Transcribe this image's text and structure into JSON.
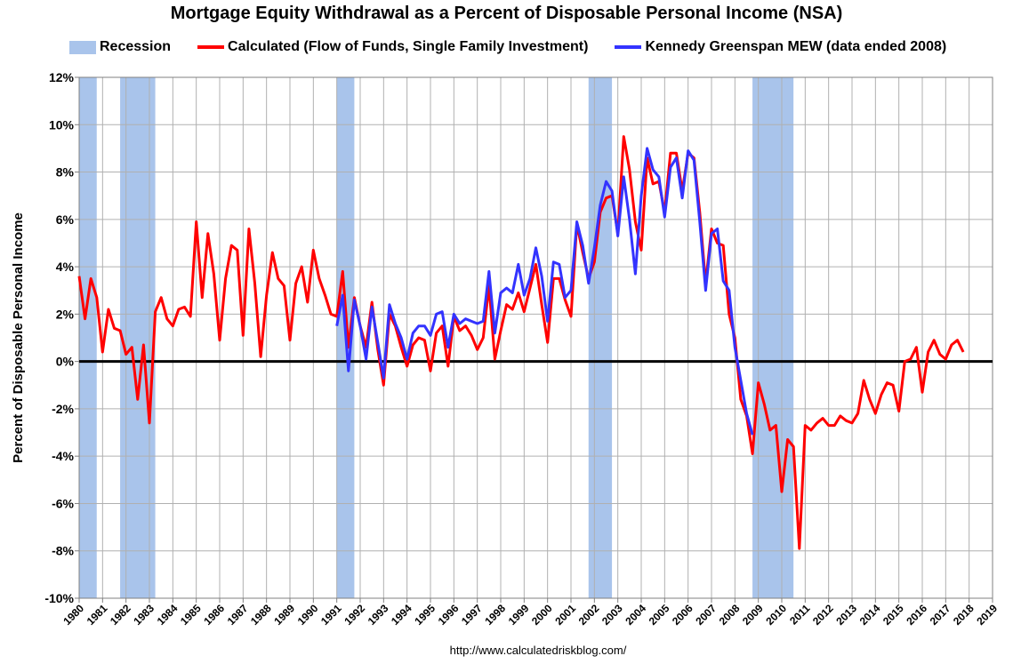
{
  "chart_data": {
    "type": "line",
    "title": "Mortgage Equity Withdrawal as a Percent of Disposable Personal Income (NSA)",
    "ylabel": "Percent of Disposable Personal Income",
    "xlabel": "",
    "ylim": [
      -10,
      12
    ],
    "xlim": [
      1980,
      2019
    ],
    "yticks": [
      -10,
      -8,
      -6,
      -4,
      -2,
      0,
      2,
      4,
      6,
      8,
      10,
      12
    ],
    "yticklabels": [
      "-10%",
      "-8%",
      "-6%",
      "-4%",
      "-2%",
      "0%",
      "2%",
      "4%",
      "6%",
      "8%",
      "10%",
      "12%"
    ],
    "xticklabels": [
      "1980",
      "1981",
      "1982",
      "1983",
      "1984",
      "1985",
      "1986",
      "1987",
      "1988",
      "1989",
      "1990",
      "1991",
      "1992",
      "1993",
      "1994",
      "1995",
      "1996",
      "1997",
      "1998",
      "1999",
      "2000",
      "2001",
      "2002",
      "2003",
      "2004",
      "2005",
      "2006",
      "2007",
      "2008",
      "2009",
      "2010",
      "2011",
      "2012",
      "2013",
      "2014",
      "2015",
      "2016",
      "2017",
      "2018",
      "2019"
    ],
    "grid": true,
    "legend_position": "top",
    "legend": [
      {
        "label": "Recession",
        "kind": "rect",
        "color": "#a9c4eb"
      },
      {
        "label": "Calculated (Flow of Funds, Single Family Investment)",
        "kind": "line",
        "color": "#ff0000"
      },
      {
        "label": "Kennedy Greenspan MEW (data ended 2008)",
        "kind": "line",
        "color": "#3333ff"
      }
    ],
    "recessions": [
      [
        1980.0,
        1980.75
      ],
      [
        1981.75,
        1983.25
      ],
      [
        1991.0,
        1991.75
      ],
      [
        2001.75,
        2002.75
      ],
      [
        2008.75,
        2010.5
      ]
    ],
    "series": [
      {
        "name": "Calculated (Flow of Funds, Single Family Investment)",
        "color": "#ff0000",
        "points": [
          [
            1980.0,
            3.6
          ],
          [
            1980.25,
            1.8
          ],
          [
            1980.5,
            3.5
          ],
          [
            1980.75,
            2.7
          ],
          [
            1981.0,
            0.4
          ],
          [
            1981.25,
            2.2
          ],
          [
            1981.5,
            1.4
          ],
          [
            1981.75,
            1.3
          ],
          [
            1982.0,
            0.3
          ],
          [
            1982.25,
            0.6
          ],
          [
            1982.5,
            -1.6
          ],
          [
            1982.75,
            0.7
          ],
          [
            1983.0,
            -2.6
          ],
          [
            1983.25,
            2.1
          ],
          [
            1983.5,
            2.7
          ],
          [
            1983.75,
            1.8
          ],
          [
            1984.0,
            1.5
          ],
          [
            1984.25,
            2.2
          ],
          [
            1984.5,
            2.3
          ],
          [
            1984.75,
            1.9
          ],
          [
            1985.0,
            5.9
          ],
          [
            1985.25,
            2.7
          ],
          [
            1985.5,
            5.4
          ],
          [
            1985.75,
            3.7
          ],
          [
            1986.0,
            0.9
          ],
          [
            1986.25,
            3.5
          ],
          [
            1986.5,
            4.9
          ],
          [
            1986.75,
            4.7
          ],
          [
            1987.0,
            1.1
          ],
          [
            1987.25,
            5.6
          ],
          [
            1987.5,
            3.3
          ],
          [
            1987.75,
            0.2
          ],
          [
            1988.0,
            2.8
          ],
          [
            1988.25,
            4.6
          ],
          [
            1988.5,
            3.5
          ],
          [
            1988.75,
            3.2
          ],
          [
            1989.0,
            0.9
          ],
          [
            1989.25,
            3.3
          ],
          [
            1989.5,
            4.0
          ],
          [
            1989.75,
            2.5
          ],
          [
            1990.0,
            4.7
          ],
          [
            1990.25,
            3.5
          ],
          [
            1990.5,
            2.8
          ],
          [
            1990.75,
            2.0
          ],
          [
            1991.0,
            1.9
          ],
          [
            1991.25,
            3.8
          ],
          [
            1991.5,
            0.6
          ],
          [
            1991.75,
            2.7
          ],
          [
            1992.0,
            1.5
          ],
          [
            1992.25,
            0.6
          ],
          [
            1992.5,
            2.5
          ],
          [
            1992.75,
            0.5
          ],
          [
            1993.0,
            -1.0
          ],
          [
            1993.25,
            2.0
          ],
          [
            1993.5,
            1.5
          ],
          [
            1993.75,
            0.6
          ],
          [
            1994.0,
            -0.2
          ],
          [
            1994.25,
            0.7
          ],
          [
            1994.5,
            1.0
          ],
          [
            1994.75,
            0.9
          ],
          [
            1995.0,
            -0.4
          ],
          [
            1995.25,
            1.2
          ],
          [
            1995.5,
            1.5
          ],
          [
            1995.75,
            -0.2
          ],
          [
            1996.0,
            1.9
          ],
          [
            1996.25,
            1.3
          ],
          [
            1996.5,
            1.5
          ],
          [
            1996.75,
            1.1
          ],
          [
            1997.0,
            0.5
          ],
          [
            1997.25,
            1.0
          ],
          [
            1997.5,
            3.2
          ],
          [
            1997.75,
            0.1
          ],
          [
            1998.0,
            1.3
          ],
          [
            1998.25,
            2.4
          ],
          [
            1998.5,
            2.2
          ],
          [
            1998.75,
            2.9
          ],
          [
            1999.0,
            2.1
          ],
          [
            1999.25,
            3.1
          ],
          [
            1999.5,
            4.1
          ],
          [
            1999.75,
            2.4
          ],
          [
            2000.0,
            0.8
          ],
          [
            2000.25,
            3.5
          ],
          [
            2000.5,
            3.5
          ],
          [
            2000.75,
            2.6
          ],
          [
            2001.0,
            1.9
          ],
          [
            2001.25,
            5.8
          ],
          [
            2001.5,
            4.6
          ],
          [
            2001.75,
            3.5
          ],
          [
            2002.0,
            4.2
          ],
          [
            2002.25,
            6.3
          ],
          [
            2002.5,
            6.9
          ],
          [
            2002.75,
            7.0
          ],
          [
            2003.0,
            5.4
          ],
          [
            2003.25,
            9.5
          ],
          [
            2003.5,
            8.1
          ],
          [
            2003.75,
            5.9
          ],
          [
            2004.0,
            4.7
          ],
          [
            2004.25,
            8.6
          ],
          [
            2004.5,
            7.5
          ],
          [
            2004.75,
            7.6
          ],
          [
            2005.0,
            6.3
          ],
          [
            2005.25,
            8.8
          ],
          [
            2005.5,
            8.8
          ],
          [
            2005.75,
            7.2
          ],
          [
            2006.0,
            8.8
          ],
          [
            2006.25,
            8.6
          ],
          [
            2006.5,
            6.3
          ],
          [
            2006.75,
            3.3
          ],
          [
            2007.0,
            5.6
          ],
          [
            2007.25,
            5.0
          ],
          [
            2007.5,
            4.9
          ],
          [
            2007.75,
            2.0
          ],
          [
            2008.0,
            1.0
          ],
          [
            2008.25,
            -1.6
          ],
          [
            2008.5,
            -2.3
          ],
          [
            2008.75,
            -3.9
          ],
          [
            2009.0,
            -0.9
          ],
          [
            2009.25,
            -1.8
          ],
          [
            2009.5,
            -2.9
          ],
          [
            2009.75,
            -2.7
          ],
          [
            2010.0,
            -5.5
          ],
          [
            2010.25,
            -3.3
          ],
          [
            2010.5,
            -3.6
          ],
          [
            2010.75,
            -7.9
          ],
          [
            2011.0,
            -2.7
          ],
          [
            2011.25,
            -2.9
          ],
          [
            2011.5,
            -2.6
          ],
          [
            2011.75,
            -2.4
          ],
          [
            2012.0,
            -2.7
          ],
          [
            2012.25,
            -2.7
          ],
          [
            2012.5,
            -2.3
          ],
          [
            2012.75,
            -2.5
          ],
          [
            2013.0,
            -2.6
          ],
          [
            2013.25,
            -2.2
          ],
          [
            2013.5,
            -0.8
          ],
          [
            2013.75,
            -1.6
          ],
          [
            2014.0,
            -2.2
          ],
          [
            2014.25,
            -1.4
          ],
          [
            2014.5,
            -0.9
          ],
          [
            2014.75,
            -1.0
          ],
          [
            2015.0,
            -2.1
          ],
          [
            2015.25,
            0.0
          ],
          [
            2015.5,
            0.1
          ],
          [
            2015.75,
            0.6
          ],
          [
            2016.0,
            -1.3
          ],
          [
            2016.25,
            0.4
          ],
          [
            2016.5,
            0.9
          ],
          [
            2016.75,
            0.3
          ],
          [
            2017.0,
            0.1
          ],
          [
            2017.25,
            0.7
          ],
          [
            2017.5,
            0.9
          ],
          [
            2017.75,
            0.4
          ]
        ]
      },
      {
        "name": "Kennedy Greenspan MEW (data ended 2008)",
        "color": "#3333ff",
        "points": [
          [
            1991.0,
            1.5
          ],
          [
            1991.25,
            2.8
          ],
          [
            1991.5,
            -0.4
          ],
          [
            1991.75,
            2.6
          ],
          [
            1992.0,
            1.5
          ],
          [
            1992.25,
            0.1
          ],
          [
            1992.5,
            2.3
          ],
          [
            1992.75,
            0.8
          ],
          [
            1993.0,
            -0.7
          ],
          [
            1993.25,
            2.4
          ],
          [
            1993.5,
            1.6
          ],
          [
            1993.75,
            1.0
          ],
          [
            1994.0,
            0.1
          ],
          [
            1994.25,
            1.2
          ],
          [
            1994.5,
            1.5
          ],
          [
            1994.75,
            1.5
          ],
          [
            1995.0,
            1.1
          ],
          [
            1995.25,
            2.0
          ],
          [
            1995.5,
            2.1
          ],
          [
            1995.75,
            0.6
          ],
          [
            1996.0,
            2.0
          ],
          [
            1996.25,
            1.6
          ],
          [
            1996.5,
            1.8
          ],
          [
            1996.75,
            1.7
          ],
          [
            1997.0,
            1.6
          ],
          [
            1997.25,
            1.7
          ],
          [
            1997.5,
            3.8
          ],
          [
            1997.75,
            1.2
          ],
          [
            1998.0,
            2.9
          ],
          [
            1998.25,
            3.1
          ],
          [
            1998.5,
            2.9
          ],
          [
            1998.75,
            4.1
          ],
          [
            1999.0,
            2.8
          ],
          [
            1999.25,
            3.5
          ],
          [
            1999.5,
            4.8
          ],
          [
            1999.75,
            3.6
          ],
          [
            2000.0,
            1.7
          ],
          [
            2000.25,
            4.2
          ],
          [
            2000.5,
            4.1
          ],
          [
            2000.75,
            2.7
          ],
          [
            2001.0,
            3.0
          ],
          [
            2001.25,
            5.9
          ],
          [
            2001.5,
            4.9
          ],
          [
            2001.75,
            3.3
          ],
          [
            2002.0,
            4.8
          ],
          [
            2002.25,
            6.6
          ],
          [
            2002.5,
            7.6
          ],
          [
            2002.75,
            7.2
          ],
          [
            2003.0,
            5.3
          ],
          [
            2003.25,
            7.8
          ],
          [
            2003.5,
            6.0
          ],
          [
            2003.75,
            3.7
          ],
          [
            2004.0,
            7.0
          ],
          [
            2004.25,
            9.0
          ],
          [
            2004.5,
            8.1
          ],
          [
            2004.75,
            7.8
          ],
          [
            2005.0,
            6.1
          ],
          [
            2005.25,
            8.2
          ],
          [
            2005.5,
            8.6
          ],
          [
            2005.75,
            6.9
          ],
          [
            2006.0,
            8.9
          ],
          [
            2006.25,
            8.5
          ],
          [
            2006.5,
            5.9
          ],
          [
            2006.75,
            3.0
          ],
          [
            2007.0,
            5.4
          ],
          [
            2007.25,
            5.6
          ],
          [
            2007.5,
            3.4
          ],
          [
            2007.75,
            3.0
          ],
          [
            2008.0,
            0.6
          ],
          [
            2008.25,
            -0.8
          ],
          [
            2008.5,
            -2.2
          ],
          [
            2008.75,
            -3.1
          ]
        ]
      }
    ],
    "annotations": [
      "http://www.calculatedriskblog.com/"
    ]
  }
}
